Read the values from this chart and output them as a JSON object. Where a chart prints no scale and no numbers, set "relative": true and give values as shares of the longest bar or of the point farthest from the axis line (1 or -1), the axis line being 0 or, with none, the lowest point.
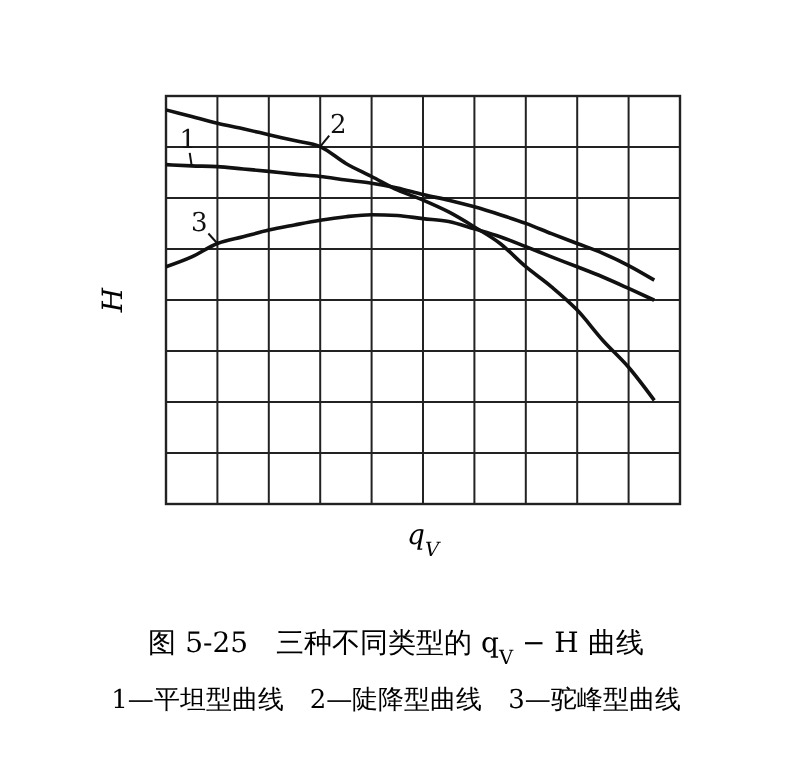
{
  "chart_data": {
    "type": "line",
    "relative": true,
    "title": "图 5-25　三种不同类型的 q$_{V}$ − H 曲线",
    "annotations": [
      "1—平坦型曲线　2—陡降型曲线　3—驼峰型曲线"
    ],
    "xlabel": "q$_{V}$",
    "ylabel": "H",
    "grid": true,
    "marker": "none",
    "line_style": "solid",
    "categories": [
      null,
      null,
      null,
      null,
      null,
      null,
      null,
      null,
      null,
      null,
      null,
      null,
      null,
      null,
      null,
      null,
      null,
      null,
      null,
      null,
      null
    ],
    "series": [
      {
        "name": "1",
        "color": "#111111",
        "values": [
          0.861,
          0.858,
          0.856,
          0.85,
          0.844,
          0.837,
          0.831,
          0.822,
          0.814,
          0.802,
          0.785,
          0.771,
          0.754,
          0.734,
          0.712,
          0.686,
          0.661,
          0.636,
          0.605,
          0.568,
          null
        ]
      },
      {
        "name": "2",
        "color": "#111111",
        "values": [
          1,
          0.983,
          0.966,
          0.952,
          0.937,
          0.922,
          0.907,
          0.864,
          0.831,
          0.797,
          0.771,
          0.741,
          0.703,
          0.661,
          0.602,
          0.551,
          0.492,
          0.415,
          0.347,
          0.263,
          null
        ]
      },
      {
        "name": "3",
        "color": "#111111",
        "values": [
          0.602,
          0.627,
          0.661,
          0.678,
          0.695,
          0.708,
          0.72,
          0.729,
          0.734,
          0.732,
          0.724,
          0.717,
          0.698,
          0.678,
          0.653,
          0.627,
          0.602,
          0.576,
          0.547,
          0.517,
          null
        ]
      }
    ]
  }
}
